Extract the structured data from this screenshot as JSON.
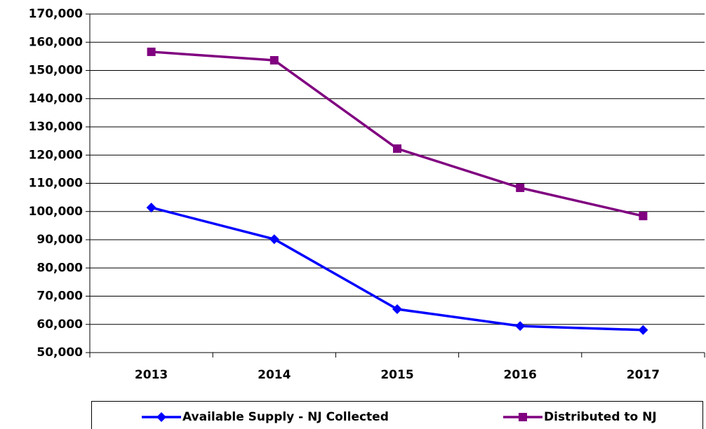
{
  "chart_data": {
    "type": "line",
    "categories": [
      "2013",
      "2014",
      "2015",
      "2016",
      "2017"
    ],
    "series": [
      {
        "name": "Available Supply - NJ Collected",
        "color": "#0000ff",
        "marker": "diamond",
        "values": [
          101400,
          90200,
          65400,
          59400,
          58000
        ]
      },
      {
        "name": "Distributed to NJ",
        "color": "#800080",
        "marker": "square",
        "values": [
          156600,
          153600,
          122300,
          108400,
          98400
        ]
      }
    ],
    "ylim": [
      50000,
      170000
    ],
    "yticks": [
      {
        "value": 50000,
        "label": "50,000"
      },
      {
        "value": 60000,
        "label": "60,000"
      },
      {
        "value": 70000,
        "label": "70,000"
      },
      {
        "value": 80000,
        "label": "80,000"
      },
      {
        "value": 90000,
        "label": "90,000"
      },
      {
        "value": 100000,
        "label": "100,000"
      },
      {
        "value": 110000,
        "label": "110,000"
      },
      {
        "value": 120000,
        "label": "120,000"
      },
      {
        "value": 130000,
        "label": "130,000"
      },
      {
        "value": 140000,
        "label": "140,000"
      },
      {
        "value": 150000,
        "label": "150,000"
      },
      {
        "value": 160000,
        "label": "160,000"
      },
      {
        "value": 170000,
        "label": "170,000"
      }
    ],
    "grid": true,
    "legend": "bottom"
  }
}
